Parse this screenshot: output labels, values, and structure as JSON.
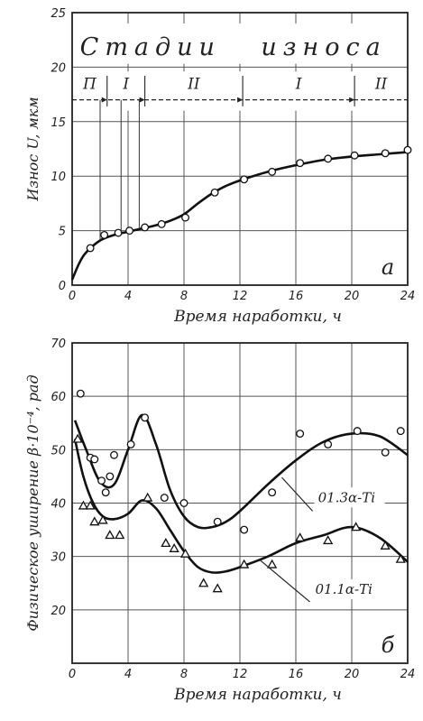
{
  "chart_data": [
    {
      "panel_label": "а",
      "type": "scatter",
      "title": "Стадии износа",
      "stages": [
        "П",
        "I",
        "II",
        "I",
        "II"
      ],
      "xlabel": "Время наработки, ч",
      "ylabel": "Износ U, мкм",
      "xlim": [
        0,
        24
      ],
      "ylim": [
        0,
        25
      ],
      "xticks": [
        0,
        4,
        8,
        12,
        16,
        20,
        24
      ],
      "yticks": [
        0,
        5,
        10,
        15,
        20,
        25
      ],
      "grid": true,
      "series": [
        {
          "points": [
            [
              1.3,
              3.4
            ],
            [
              2.3,
              4.6
            ],
            [
              3.3,
              4.8
            ],
            [
              4.1,
              5.0
            ],
            [
              5.2,
              5.3
            ],
            [
              6.4,
              5.6
            ],
            [
              8.1,
              6.2
            ],
            [
              10.2,
              8.5
            ],
            [
              12.3,
              9.7
            ],
            [
              14.3,
              10.4
            ],
            [
              16.3,
              11.2
            ],
            [
              18.3,
              11.6
            ],
            [
              20.2,
              11.9
            ],
            [
              22.4,
              12.1
            ],
            [
              24.0,
              12.4
            ]
          ],
          "curve": [
            [
              0,
              0.5
            ],
            [
              0.5,
              2.0
            ],
            [
              1,
              3.0
            ],
            [
              2,
              4.1
            ],
            [
              3,
              4.6
            ],
            [
              4,
              4.9
            ],
            [
              5,
              5.2
            ],
            [
              6,
              5.5
            ],
            [
              7,
              5.9
            ],
            [
              8,
              6.5
            ],
            [
              9,
              7.5
            ],
            [
              10,
              8.4
            ],
            [
              11,
              9.1
            ],
            [
              12,
              9.6
            ],
            [
              14,
              10.4
            ],
            [
              16,
              11.0
            ],
            [
              18,
              11.5
            ],
            [
              20,
              11.8
            ],
            [
              22,
              12.0
            ],
            [
              24,
              12.2
            ]
          ]
        }
      ]
    },
    {
      "panel_label": "б",
      "type": "scatter",
      "xlabel": "Время наработки, ч",
      "ylabel": "Физическое уширение β·10⁻⁴, рад",
      "xlim": [
        0,
        24
      ],
      "ylim": [
        10,
        70
      ],
      "xticks": [
        0,
        4,
        8,
        12,
        16,
        20,
        24
      ],
      "yticks": [
        20,
        30,
        40,
        50,
        60,
        70
      ],
      "xtick_labels": [
        "0",
        "4",
        "8",
        "12",
        "16",
        "20",
        "24"
      ],
      "ytick_labels": [
        "20",
        "30",
        "40",
        "50",
        "60",
        "70"
      ],
      "grid": true,
      "series": [
        {
          "name": "01.3α-Ti",
          "marker": "circle",
          "points": [
            [
              0.6,
              60.5
            ],
            [
              1.3,
              48.5
            ],
            [
              1.6,
              48.2
            ],
            [
              2.1,
              44.2
            ],
            [
              2.4,
              42.0
            ],
            [
              2.7,
              45.0
            ],
            [
              3.0,
              49.0
            ],
            [
              4.2,
              51.0
            ],
            [
              5.2,
              56.0
            ],
            [
              6.6,
              41.0
            ],
            [
              8.0,
              40.0
            ],
            [
              10.4,
              36.5
            ],
            [
              12.3,
              35.0
            ],
            [
              14.3,
              42.0
            ],
            [
              16.3,
              53.0
            ],
            [
              18.3,
              51.0
            ],
            [
              20.4,
              53.5
            ],
            [
              22.4,
              49.5
            ],
            [
              23.5,
              53.5
            ]
          ],
          "curve": [
            [
              0.2,
              55.5
            ],
            [
              1,
              50.0
            ],
            [
              2,
              44.0
            ],
            [
              3,
              43.5
            ],
            [
              4,
              50.0
            ],
            [
              5,
              56.5
            ],
            [
              6,
              51.0
            ],
            [
              7,
              42.5
            ],
            [
              8,
              37.5
            ],
            [
              9,
              35.5
            ],
            [
              10,
              35.5
            ],
            [
              11,
              36.5
            ],
            [
              12,
              38.5
            ],
            [
              14,
              43.5
            ],
            [
              16,
              48.0
            ],
            [
              18,
              51.5
            ],
            [
              20,
              53.0
            ],
            [
              22,
              52.5
            ],
            [
              24,
              49.0
            ]
          ]
        },
        {
          "name": "01.1α-Ti",
          "marker": "triangle",
          "points": [
            [
              0.4,
              52.0
            ],
            [
              0.8,
              39.5
            ],
            [
              1.3,
              39.5
            ],
            [
              1.6,
              36.5
            ],
            [
              2.2,
              36.8
            ],
            [
              2.7,
              34.0
            ],
            [
              3.4,
              34.0
            ],
            [
              5.4,
              41.0
            ],
            [
              6.7,
              32.5
            ],
            [
              7.3,
              31.5
            ],
            [
              8.1,
              30.5
            ],
            [
              9.4,
              25.0
            ],
            [
              10.4,
              24.0
            ],
            [
              12.3,
              28.5
            ],
            [
              14.3,
              28.5
            ],
            [
              16.3,
              33.5
            ],
            [
              18.3,
              33.0
            ],
            [
              20.3,
              35.5
            ],
            [
              22.4,
              32.0
            ],
            [
              23.5,
              29.5
            ]
          ],
          "curve": [
            [
              0.2,
              52.0
            ],
            [
              0.8,
              45.0
            ],
            [
              1.5,
              40.0
            ],
            [
              2.2,
              37.5
            ],
            [
              3,
              37.0
            ],
            [
              4,
              38.0
            ],
            [
              5,
              40.5
            ],
            [
              6,
              39.0
            ],
            [
              7,
              35.0
            ],
            [
              8,
              31.0
            ],
            [
              9,
              28.0
            ],
            [
              10,
              27.0
            ],
            [
              11,
              27.2
            ],
            [
              12,
              28.0
            ],
            [
              14,
              30.0
            ],
            [
              16,
              32.5
            ],
            [
              18,
              34.0
            ],
            [
              20,
              35.5
            ],
            [
              22,
              33.5
            ],
            [
              24,
              29.0
            ]
          ]
        }
      ]
    }
  ]
}
